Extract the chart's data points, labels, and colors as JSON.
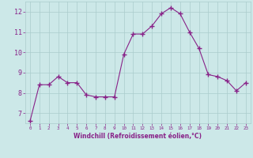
{
  "x": [
    0,
    1,
    2,
    3,
    4,
    5,
    6,
    7,
    8,
    9,
    10,
    11,
    12,
    13,
    14,
    15,
    16,
    17,
    18,
    19,
    20,
    21,
    22,
    23
  ],
  "y": [
    6.6,
    8.4,
    8.4,
    8.8,
    8.5,
    8.5,
    7.9,
    7.8,
    7.8,
    7.8,
    9.9,
    10.9,
    10.9,
    11.3,
    11.9,
    12.2,
    11.9,
    11.0,
    10.2,
    8.9,
    8.8,
    8.6,
    8.1,
    8.5
  ],
  "line_color": "#882288",
  "marker": "+",
  "marker_size": 4,
  "bg_color": "#cce8e8",
  "grid_color": "#aacccc",
  "xlabel": "Windchill (Refroidissement éolien,°C)",
  "xlabel_color": "#882288",
  "tick_color": "#882288",
  "ylim": [
    6.5,
    12.5
  ],
  "yticks": [
    7,
    8,
    9,
    10,
    11,
    12
  ],
  "xlim": [
    -0.5,
    23.5
  ],
  "xticks": [
    0,
    1,
    2,
    3,
    4,
    5,
    6,
    7,
    8,
    9,
    10,
    11,
    12,
    13,
    14,
    15,
    16,
    17,
    18,
    19,
    20,
    21,
    22,
    23
  ],
  "xtick_labels": [
    "0",
    "1",
    "2",
    "3",
    "4",
    "5",
    "6",
    "7",
    "8",
    "9",
    "10",
    "11",
    "12",
    "13",
    "14",
    "15",
    "16",
    "17",
    "18",
    "19",
    "20",
    "21",
    "22",
    "23"
  ]
}
